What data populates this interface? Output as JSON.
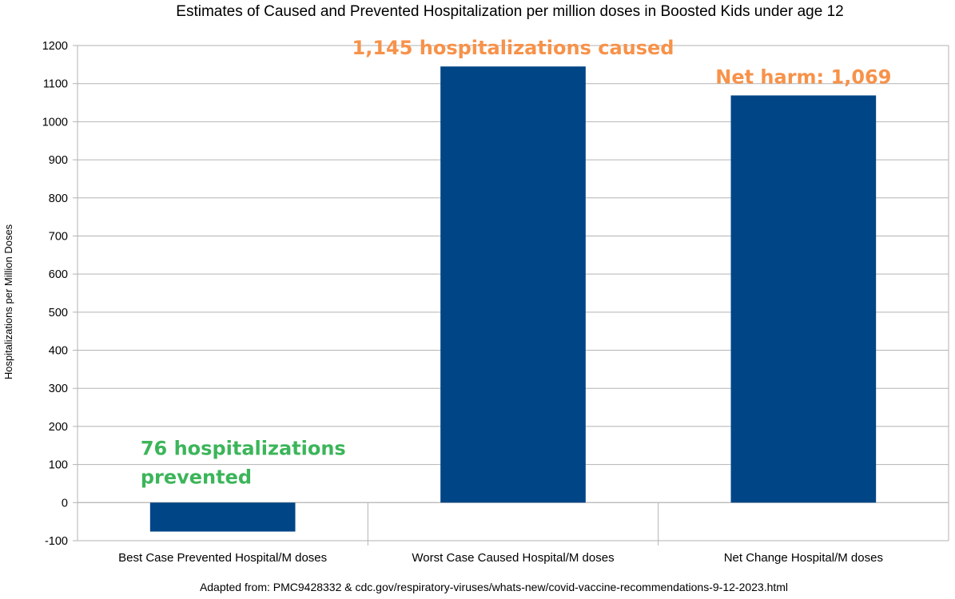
{
  "chart_data": {
    "type": "bar",
    "title": "Estimates of Caused and Prevented Hospitalization per million doses in Boosted Kids under age 12",
    "ylabel": "Hospitalizations per Million Doses",
    "xlabel": "",
    "categories": [
      "Best Case Prevented Hospital/M doses",
      "Worst Case Caused Hospital/M doses",
      "Net Change Hospital/M doses"
    ],
    "values": [
      -76,
      1145,
      1069
    ],
    "ylim": [
      -100,
      1200
    ],
    "yticks": [
      -100,
      0,
      100,
      200,
      300,
      400,
      500,
      600,
      700,
      800,
      900,
      1000,
      1100,
      1200
    ],
    "grid": true,
    "bar_color": "#004586",
    "annotations": [
      {
        "lines": [
          "76 hospitalizations",
          "prevented"
        ],
        "color": "#3cb55a"
      },
      {
        "lines": [
          "1,145 hospitalizations caused"
        ],
        "color": "#f7924a"
      },
      {
        "lines": [
          "Net harm: 1,069"
        ],
        "color": "#f7924a"
      }
    ],
    "source": "Adapted from: PMC9428332 & cdc.gov/respiratory-viruses/whats-new/covid-vaccine-recommendations-9-12-2023.html"
  }
}
